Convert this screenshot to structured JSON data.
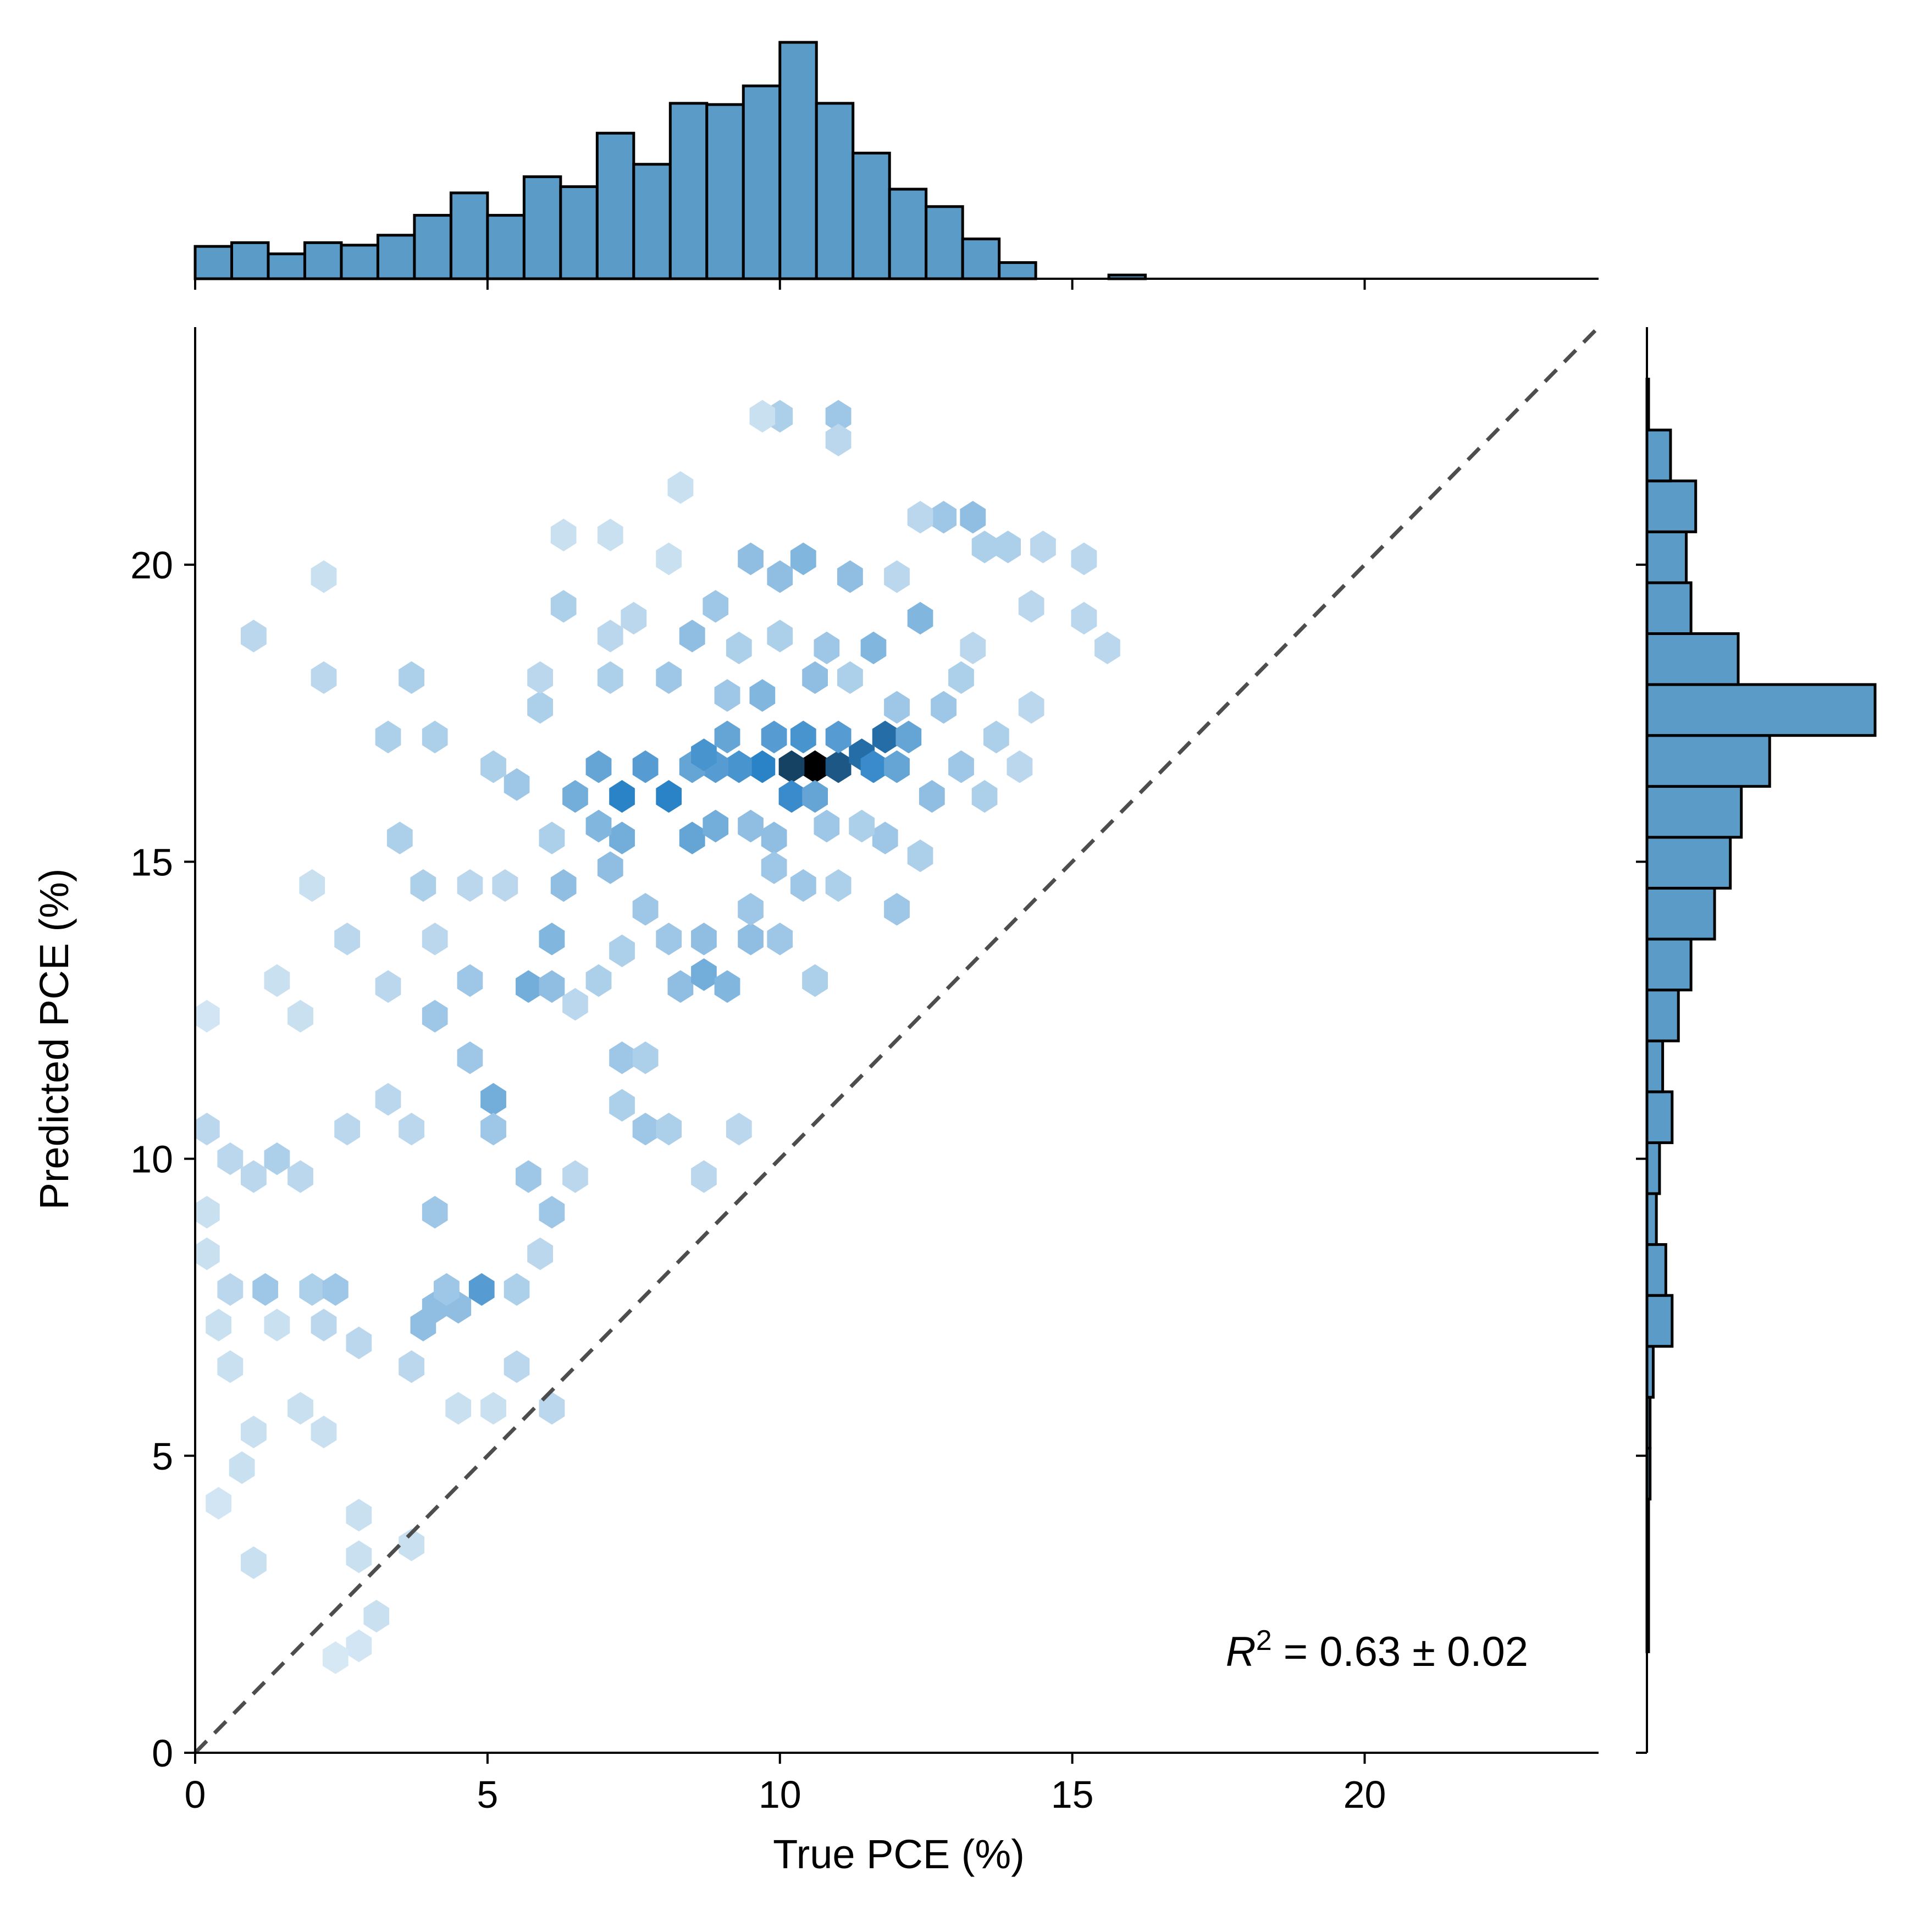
{
  "chart_data": {
    "type": "hexbin-jointplot",
    "xlabel": "True PCE (%)",
    "ylabel": "Predicted PCE (%)",
    "xlim": [
      0,
      24
    ],
    "ylim": [
      0,
      24
    ],
    "x_ticks": [
      0,
      5,
      10,
      15,
      20
    ],
    "y_ticks": [
      0,
      5,
      10,
      15,
      20
    ],
    "x_tick_labels": [
      "0",
      "5",
      "10",
      "15",
      "20"
    ],
    "y_tick_labels": [
      "0",
      "5",
      "10",
      "15",
      "20"
    ],
    "annotation": {
      "symbol": "R",
      "superscript": "2",
      "text": " = 0.63 ± 0.02"
    },
    "reference_line": {
      "type": "identity",
      "style": "dashed",
      "color": "#4d4d4d"
    },
    "colors": {
      "hist_fill": "#5b9bc8",
      "hist_edge": "#000000",
      "hex_light": "#f4f9fd",
      "hex_mid": "#2b83c7",
      "hex_dark": "#000000"
    },
    "top_histogram": {
      "bin_edges_start": 0,
      "bin_width": 0.625,
      "counts": [
        26,
        29,
        20,
        29,
        27,
        35,
        51,
        69,
        51,
        82,
        74,
        117,
        92,
        141,
        140,
        155,
        190,
        141,
        101,
        72,
        58,
        32,
        13,
        0,
        0,
        3
      ]
    },
    "right_histogram": {
      "bin_edges_start": 1.7,
      "bin_width": 0.857,
      "bins_centers": [
        2.1,
        3.0,
        3.9,
        4.8,
        5.6,
        6.5,
        7.4,
        8.2,
        9.1,
        9.9,
        10.8,
        11.7,
        12.5,
        13.4,
        14.3,
        15.1,
        16.0,
        16.8,
        17.7,
        18.6,
        19.4,
        20.3,
        21.1,
        22.0,
        22.8
      ],
      "counts": [
        1,
        1,
        1,
        2,
        2,
        4,
        16,
        12,
        6,
        8,
        16,
        10,
        20,
        28,
        43,
        53,
        60,
        78,
        145,
        58,
        28,
        25,
        31,
        15,
        1
      ]
    },
    "hexbin_points": [
      [
        10.6,
        16.6,
        1.0
      ],
      [
        10.2,
        16.6,
        0.85
      ],
      [
        11.0,
        16.6,
        0.8
      ],
      [
        11.4,
        16.8,
        0.75
      ],
      [
        11.8,
        17.1,
        0.75
      ],
      [
        11.6,
        16.6,
        0.65
      ],
      [
        9.7,
        16.6,
        0.7
      ],
      [
        9.3,
        16.6,
        0.6
      ],
      [
        8.9,
        16.6,
        0.55
      ],
      [
        8.5,
        16.6,
        0.5
      ],
      [
        8.1,
        16.1,
        0.7
      ],
      [
        7.3,
        16.1,
        0.7
      ],
      [
        7.7,
        16.6,
        0.55
      ],
      [
        6.9,
        16.6,
        0.5
      ],
      [
        10.2,
        16.1,
        0.65
      ],
      [
        10.6,
        16.1,
        0.5
      ],
      [
        9.9,
        17.1,
        0.55
      ],
      [
        10.4,
        17.1,
        0.6
      ],
      [
        11.0,
        17.1,
        0.55
      ],
      [
        12.2,
        17.1,
        0.5
      ],
      [
        12.0,
        16.6,
        0.5
      ],
      [
        9.1,
        17.1,
        0.5
      ],
      [
        8.7,
        16.8,
        0.6
      ],
      [
        6.5,
        16.1,
        0.45
      ],
      [
        7.3,
        15.4,
        0.45
      ],
      [
        8.5,
        15.4,
        0.5
      ],
      [
        8.9,
        15.6,
        0.45
      ],
      [
        9.5,
        15.6,
        0.35
      ],
      [
        9.9,
        15.4,
        0.35
      ],
      [
        6.9,
        15.6,
        0.4
      ],
      [
        7.1,
        14.9,
        0.35
      ],
      [
        6.3,
        14.6,
        0.35
      ],
      [
        6.1,
        13.7,
        0.4
      ],
      [
        5.7,
        12.9,
        0.45
      ],
      [
        6.1,
        12.9,
        0.35
      ],
      [
        8.3,
        12.9,
        0.35
      ],
      [
        8.7,
        13.1,
        0.45
      ],
      [
        9.1,
        12.9,
        0.4
      ],
      [
        9.5,
        13.7,
        0.35
      ],
      [
        8.7,
        13.7,
        0.35
      ],
      [
        5.1,
        11.0,
        0.45
      ],
      [
        10.4,
        20.1,
        0.4
      ],
      [
        10.0,
        19.8,
        0.35
      ],
      [
        9.5,
        20.1,
        0.35
      ],
      [
        11.2,
        19.8,
        0.35
      ],
      [
        11.6,
        18.6,
        0.4
      ],
      [
        8.5,
        18.8,
        0.35
      ],
      [
        9.7,
        17.8,
        0.4
      ],
      [
        10.6,
        18.1,
        0.35
      ],
      [
        13.3,
        20.8,
        0.35
      ],
      [
        12.8,
        20.8,
        0.3
      ],
      [
        11.0,
        22.5,
        0.3
      ],
      [
        10.0,
        22.5,
        0.25
      ],
      [
        12.4,
        19.1,
        0.4
      ],
      [
        9.1,
        17.8,
        0.3
      ],
      [
        4.9,
        7.8,
        0.55
      ],
      [
        4.5,
        7.5,
        0.35
      ],
      [
        4.1,
        7.5,
        0.35
      ],
      [
        4.3,
        7.8,
        0.3
      ],
      [
        3.9,
        7.2,
        0.35
      ],
      [
        1.2,
        7.8,
        0.3
      ],
      [
        2.0,
        7.8,
        0.25
      ],
      [
        2.4,
        7.8,
        0.3
      ],
      [
        4.1,
        9.1,
        0.3
      ],
      [
        5.7,
        9.7,
        0.3
      ],
      [
        5.1,
        10.5,
        0.3
      ],
      [
        4.7,
        11.7,
        0.3
      ],
      [
        4.1,
        12.4,
        0.3
      ],
      [
        4.7,
        13.0,
        0.3
      ],
      [
        3.9,
        14.6,
        0.25
      ],
      [
        3.5,
        15.4,
        0.25
      ],
      [
        3.3,
        17.1,
        0.25
      ],
      [
        4.1,
        17.1,
        0.25
      ],
      [
        3.7,
        18.1,
        0.25
      ],
      [
        5.5,
        16.3,
        0.3
      ],
      [
        5.1,
        16.6,
        0.25
      ],
      [
        6.3,
        19.3,
        0.25
      ],
      [
        7.1,
        18.1,
        0.25
      ],
      [
        5.9,
        17.6,
        0.25
      ],
      [
        11.8,
        15.4,
        0.3
      ],
      [
        12.0,
        14.2,
        0.3
      ],
      [
        12.4,
        15.1,
        0.25
      ],
      [
        12.8,
        17.6,
        0.3
      ],
      [
        13.1,
        18.1,
        0.25
      ],
      [
        13.5,
        20.3,
        0.25
      ],
      [
        13.9,
        20.3,
        0.25
      ],
      [
        14.3,
        19.3,
        0.2
      ],
      [
        15.2,
        19.1,
        0.2
      ],
      [
        15.6,
        18.6,
        0.2
      ],
      [
        15.2,
        20.1,
        0.2
      ],
      [
        0.2,
        10.5,
        0.2
      ],
      [
        0.6,
        10.0,
        0.2
      ],
      [
        1.0,
        9.7,
        0.2
      ],
      [
        1.4,
        10.0,
        0.25
      ],
      [
        1.8,
        9.7,
        0.2
      ],
      [
        2.6,
        10.5,
        0.2
      ],
      [
        3.3,
        11.0,
        0.2
      ],
      [
        3.7,
        10.5,
        0.2
      ],
      [
        0.4,
        7.2,
        0.15
      ],
      [
        0.6,
        6.5,
        0.15
      ],
      [
        0.8,
        4.8,
        0.15
      ],
      [
        0.4,
        4.2,
        0.12
      ],
      [
        1.0,
        5.4,
        0.15
      ],
      [
        1.8,
        5.8,
        0.15
      ],
      [
        2.2,
        5.4,
        0.15
      ],
      [
        2.8,
        4.0,
        0.15
      ],
      [
        2.8,
        3.3,
        0.15
      ],
      [
        3.7,
        3.5,
        0.15
      ],
      [
        2.8,
        1.8,
        0.12
      ],
      [
        3.1,
        2.3,
        0.15
      ],
      [
        2.4,
        1.6,
        0.1
      ],
      [
        1.0,
        3.2,
        0.15
      ],
      [
        1.0,
        18.8,
        0.2
      ],
      [
        2.2,
        18.1,
        0.2
      ],
      [
        2.2,
        19.8,
        0.15
      ],
      [
        5.9,
        18.1,
        0.2
      ],
      [
        7.1,
        18.8,
        0.2
      ],
      [
        7.1,
        20.5,
        0.15
      ],
      [
        6.3,
        20.5,
        0.15
      ],
      [
        8.3,
        21.3,
        0.15
      ],
      [
        9.7,
        22.5,
        0.15
      ],
      [
        11.0,
        22.1,
        0.2
      ],
      [
        6.1,
        15.4,
        0.25
      ],
      [
        5.3,
        14.6,
        0.2
      ],
      [
        4.7,
        14.6,
        0.2
      ],
      [
        4.1,
        13.7,
        0.2
      ],
      [
        3.3,
        12.9,
        0.2
      ],
      [
        2.6,
        13.7,
        0.2
      ],
      [
        2.0,
        14.6,
        0.15
      ],
      [
        1.4,
        13.0,
        0.15
      ],
      [
        1.8,
        12.4,
        0.15
      ],
      [
        0.2,
        12.4,
        0.12
      ],
      [
        7.3,
        11.7,
        0.3
      ],
      [
        7.7,
        11.7,
        0.25
      ],
      [
        7.3,
        10.9,
        0.25
      ],
      [
        7.7,
        10.5,
        0.3
      ],
      [
        8.1,
        10.5,
        0.25
      ],
      [
        9.3,
        10.5,
        0.2
      ],
      [
        8.7,
        9.7,
        0.2
      ],
      [
        6.5,
        9.7,
        0.2
      ],
      [
        6.1,
        9.1,
        0.3
      ],
      [
        5.9,
        8.4,
        0.2
      ],
      [
        5.5,
        7.8,
        0.25
      ],
      [
        5.5,
        6.5,
        0.2
      ],
      [
        6.1,
        5.8,
        0.2
      ],
      [
        5.1,
        5.8,
        0.15
      ],
      [
        4.5,
        5.8,
        0.15
      ],
      [
        3.7,
        6.5,
        0.2
      ],
      [
        2.8,
        6.9,
        0.2
      ],
      [
        2.2,
        7.2,
        0.2
      ],
      [
        1.4,
        7.2,
        0.15
      ],
      [
        0.6,
        7.8,
        0.2
      ],
      [
        0.2,
        8.4,
        0.15
      ],
      [
        0.2,
        9.1,
        0.15
      ],
      [
        9.5,
        14.2,
        0.3
      ],
      [
        9.9,
        14.9,
        0.3
      ],
      [
        10.4,
        14.6,
        0.3
      ],
      [
        10.8,
        15.6,
        0.3
      ],
      [
        11.4,
        15.6,
        0.25
      ],
      [
        7.7,
        14.2,
        0.3
      ],
      [
        8.1,
        13.7,
        0.3
      ],
      [
        7.3,
        13.5,
        0.25
      ],
      [
        6.9,
        13.0,
        0.25
      ],
      [
        6.5,
        12.6,
        0.2
      ],
      [
        10.0,
        13.7,
        0.3
      ],
      [
        10.6,
        13.0,
        0.25
      ],
      [
        11.0,
        14.6,
        0.25
      ],
      [
        12.6,
        16.1,
        0.35
      ],
      [
        13.1,
        16.6,
        0.3
      ],
      [
        13.5,
        16.1,
        0.25
      ],
      [
        14.1,
        16.6,
        0.2
      ],
      [
        14.3,
        17.6,
        0.2
      ],
      [
        13.7,
        17.1,
        0.25
      ],
      [
        13.3,
        18.6,
        0.2
      ],
      [
        12.0,
        19.8,
        0.2
      ],
      [
        12.4,
        20.8,
        0.2
      ],
      [
        14.5,
        20.3,
        0.2
      ],
      [
        8.1,
        20.1,
        0.15
      ],
      [
        7.5,
        19.1,
        0.2
      ],
      [
        8.1,
        18.1,
        0.3
      ],
      [
        8.9,
        19.3,
        0.3
      ],
      [
        9.3,
        18.6,
        0.25
      ],
      [
        10.0,
        18.8,
        0.25
      ],
      [
        10.8,
        18.6,
        0.3
      ],
      [
        11.2,
        18.1,
        0.25
      ],
      [
        12.0,
        17.6,
        0.3
      ]
    ]
  }
}
